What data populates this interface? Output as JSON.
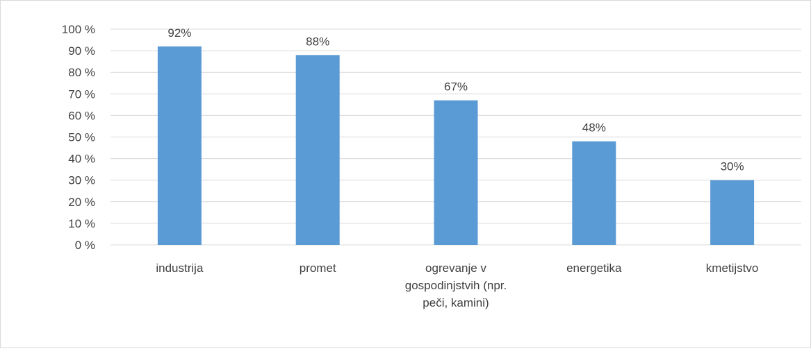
{
  "chart_data": {
    "type": "bar",
    "title": "",
    "xlabel": "",
    "ylabel": "",
    "categories": [
      [
        "industrija"
      ],
      [
        "promet"
      ],
      [
        "ogrevanje v",
        "gospodinjstvih (npr.",
        "peči, kamini)"
      ],
      [
        "energetika"
      ],
      [
        "kmetijstvo"
      ]
    ],
    "values": [
      92,
      88,
      67,
      48,
      30
    ],
    "data_labels": [
      "92%",
      "88%",
      "67%",
      "48%",
      "30%"
    ],
    "ylim": [
      0,
      100
    ],
    "yticks": [
      0,
      10,
      20,
      30,
      40,
      50,
      60,
      70,
      80,
      90,
      100
    ],
    "ytick_labels": [
      "0 %",
      "10 %",
      "20 %",
      "30 %",
      "40 %",
      "50 %",
      "60 %",
      "70 %",
      "80 %",
      "90 %",
      "100 %"
    ],
    "grid": true,
    "legend": "none",
    "colors": {
      "bar": "#5b9bd5",
      "grid": "#d9d9d9",
      "text": "#404040"
    }
  }
}
